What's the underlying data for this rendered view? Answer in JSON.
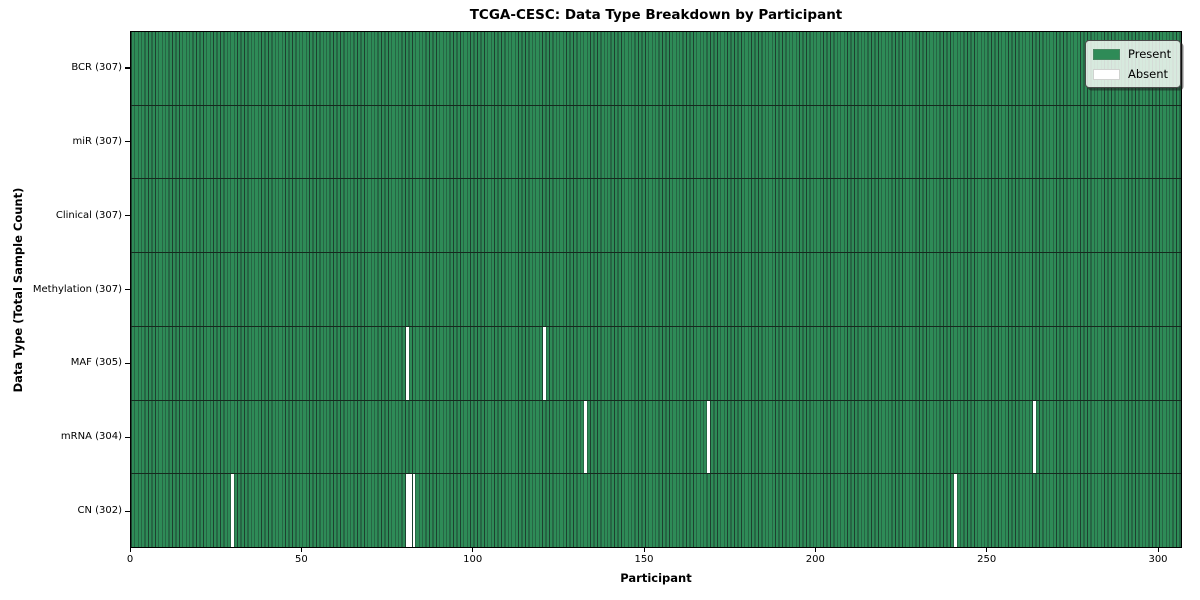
{
  "chart_data": {
    "type": "heatmap",
    "title": "TCGA-CESC: Data Type Breakdown by Participant",
    "xlabel": "Participant",
    "ylabel": "Data Type (Total Sample Count)",
    "x_ticks": [
      0,
      50,
      100,
      150,
      200,
      250,
      300
    ],
    "x_range": [
      0,
      307
    ],
    "n_participants": 307,
    "grid": true,
    "legend_position": "upper right",
    "rows": [
      {
        "label": "BCR (307)",
        "present_count": 307,
        "absent_participants": []
      },
      {
        "label": "miR (307)",
        "present_count": 307,
        "absent_participants": []
      },
      {
        "label": "Clinical (307)",
        "present_count": 307,
        "absent_participants": []
      },
      {
        "label": "Methylation (307)",
        "present_count": 307,
        "absent_participants": []
      },
      {
        "label": "MAF (305)",
        "present_count": 305,
        "absent_participants": [
          80,
          120
        ]
      },
      {
        "label": "mRNA (304)",
        "present_count": 304,
        "absent_participants": [
          132,
          168,
          263
        ]
      },
      {
        "label": "CN (302)",
        "present_count": 302,
        "absent_participants": [
          29,
          80,
          81,
          82,
          240
        ]
      }
    ],
    "legend": [
      {
        "label": "Present",
        "color": "#2e8b57"
      },
      {
        "label": "Absent",
        "color": "#ffffff"
      }
    ],
    "colors": {
      "present": "#2e8b57",
      "absent": "#ffffff",
      "cell_grid_line": "#1d4130",
      "row_separator": "#152a1e",
      "axis": "#000000"
    }
  }
}
